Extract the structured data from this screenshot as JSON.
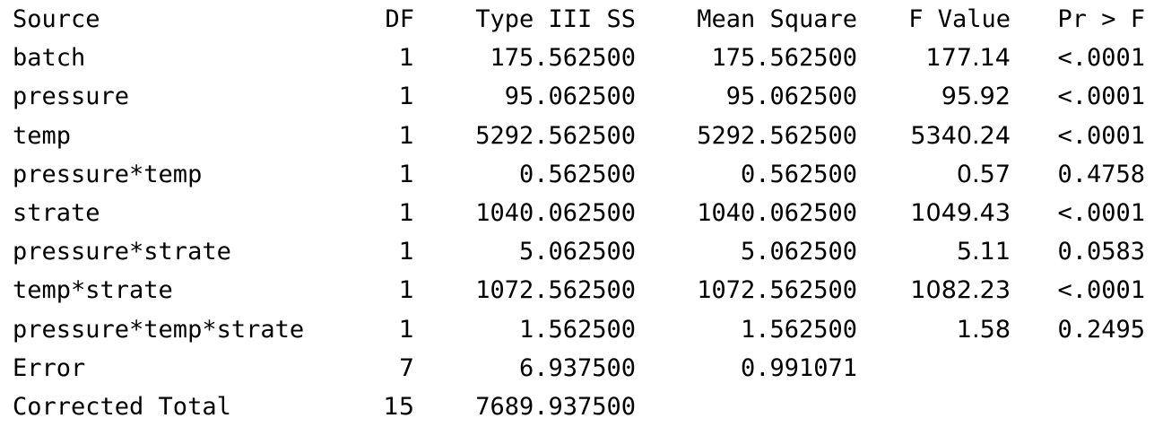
{
  "table": {
    "headers": [
      "Source",
      "DF",
      "Type III SS",
      "Mean Square",
      "F Value",
      "Pr > F"
    ],
    "rows": [
      {
        "source": "batch",
        "df": "1",
        "ss": "175.562500",
        "ms": "175.562500",
        "f": "177.14",
        "p": "<.0001"
      },
      {
        "source": "pressure",
        "df": "1",
        "ss": "95.062500",
        "ms": "95.062500",
        "f": "95.92",
        "p": "<.0001"
      },
      {
        "source": "temp",
        "df": "1",
        "ss": "5292.562500",
        "ms": "5292.562500",
        "f": "5340.24",
        "p": "<.0001"
      },
      {
        "source": "pressure*temp",
        "df": "1",
        "ss": "0.562500",
        "ms": "0.562500",
        "f": "0.57",
        "p": "0.4758"
      },
      {
        "source": "strate",
        "df": "1",
        "ss": "1040.062500",
        "ms": "1040.062500",
        "f": "1049.43",
        "p": "<.0001"
      },
      {
        "source": "pressure*strate",
        "df": "1",
        "ss": "5.062500",
        "ms": "5.062500",
        "f": "5.11",
        "p": "0.0583"
      },
      {
        "source": "temp*strate",
        "df": "1",
        "ss": "1072.562500",
        "ms": "1072.562500",
        "f": "1082.23",
        "p": "<.0001"
      },
      {
        "source": "pressure*temp*strate",
        "df": "1",
        "ss": "1.562500",
        "ms": "1.562500",
        "f": "1.58",
        "p": "0.2495"
      },
      {
        "source": "Error",
        "df": "7",
        "ss": "6.937500",
        "ms": "0.991071",
        "f": "",
        "p": ""
      },
      {
        "source": "Corrected Total",
        "df": "15",
        "ss": "7689.937500",
        "ms": "",
        "f": "",
        "p": ""
      }
    ]
  }
}
